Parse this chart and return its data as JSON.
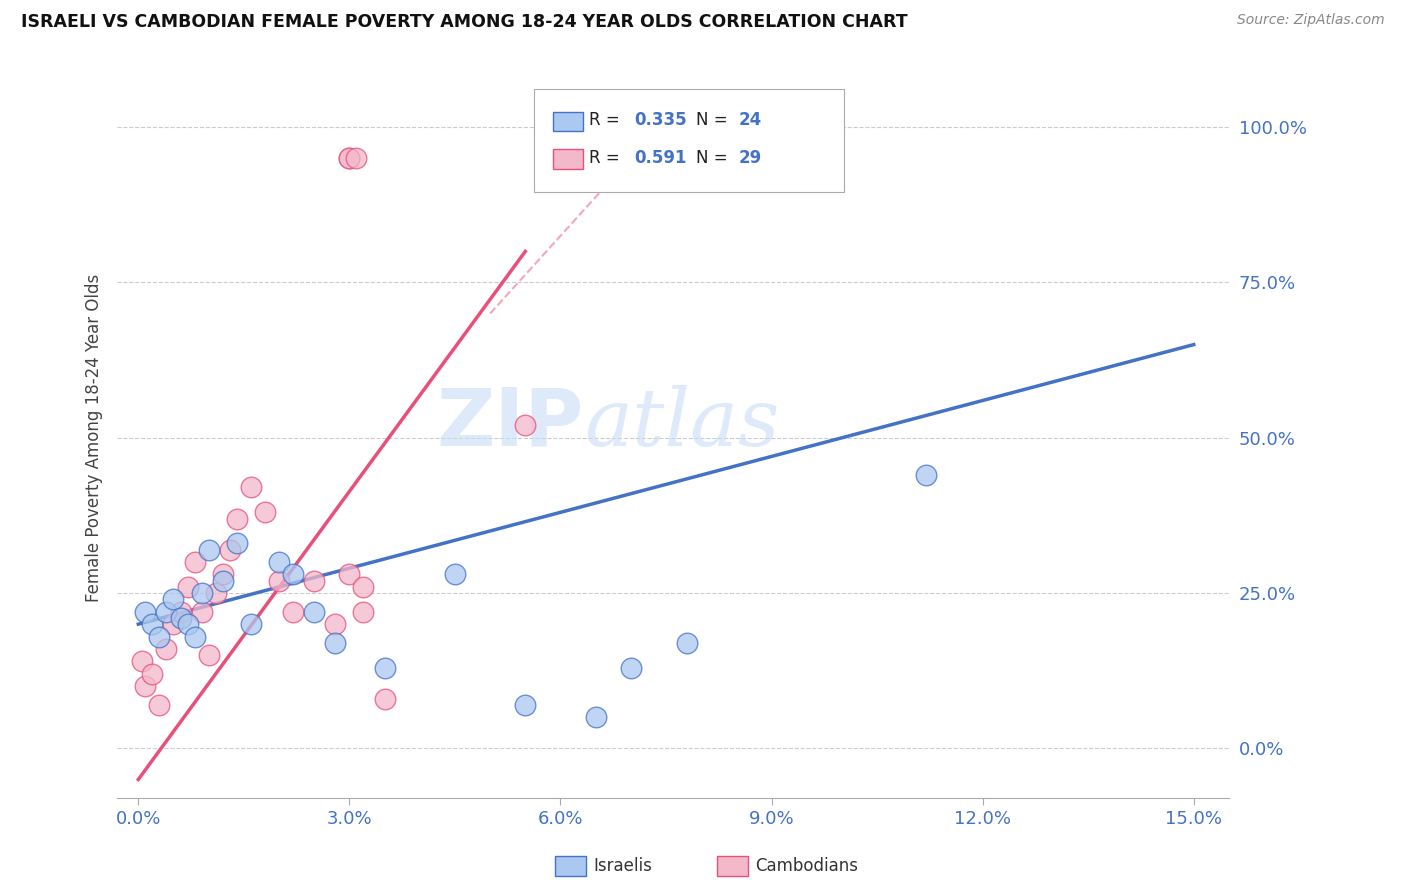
{
  "title": "ISRAELI VS CAMBODIAN FEMALE POVERTY AMONG 18-24 YEAR OLDS CORRELATION CHART",
  "source": "Source: ZipAtlas.com",
  "ylabel": "Female Poverty Among 18-24 Year Olds",
  "xlim": [
    -0.3,
    15.5
  ],
  "ylim": [
    -8,
    108
  ],
  "x_ticks": [
    0.0,
    3.0,
    6.0,
    9.0,
    12.0,
    15.0
  ],
  "x_tick_labels": [
    "0.0%",
    "3.0%",
    "6.0%",
    "9.0%",
    "12.0%",
    "15.0%"
  ],
  "y_ticks": [
    0,
    25,
    50,
    75,
    100
  ],
  "y_tick_labels": [
    "0.0%",
    "25.0%",
    "50.0%",
    "75.0%",
    "100.0%"
  ],
  "israeli_R": 0.335,
  "israeli_N": 24,
  "cambodian_R": 0.591,
  "cambodian_N": 29,
  "israeli_color": "#aac8f0",
  "cambodian_color": "#f4b8cb",
  "israeli_line_color": "#4472c4",
  "cambodian_line_color": "#e8507a",
  "watermark_zip": "ZIP",
  "watermark_atlas": "atlas",
  "israelis_x": [
    0.1,
    0.2,
    0.3,
    0.4,
    0.5,
    0.6,
    0.7,
    0.8,
    0.9,
    1.0,
    1.2,
    1.4,
    1.6,
    2.0,
    2.2,
    2.5,
    2.8,
    3.5,
    4.5,
    5.5,
    6.5,
    7.0,
    7.8,
    11.2
  ],
  "israelis_y": [
    22,
    20,
    18,
    22,
    24,
    21,
    20,
    18,
    25,
    32,
    27,
    33,
    20,
    30,
    28,
    22,
    17,
    13,
    28,
    7,
    5,
    13,
    17,
    44
  ],
  "cambodians_x": [
    0.05,
    0.1,
    0.2,
    0.3,
    0.4,
    0.5,
    0.6,
    0.7,
    0.8,
    0.9,
    1.0,
    1.1,
    1.2,
    1.3,
    1.4,
    1.6,
    1.8,
    2.0,
    2.2,
    2.5,
    2.8,
    3.0,
    3.2,
    3.2,
    3.5,
    5.5,
    3.0,
    3.0,
    3.1
  ],
  "cambodians_y": [
    14,
    10,
    12,
    7,
    16,
    20,
    22,
    26,
    30,
    22,
    15,
    25,
    28,
    32,
    37,
    42,
    38,
    27,
    22,
    27,
    20,
    28,
    22,
    26,
    8,
    52,
    95,
    95,
    95
  ],
  "islraeli_line_x": [
    0.0,
    15.0
  ],
  "islraeli_line_y": [
    20.0,
    65.0
  ],
  "cambodian_line_x": [
    0.0,
    5.5
  ],
  "cambodian_line_y": [
    -5.0,
    80.0
  ]
}
